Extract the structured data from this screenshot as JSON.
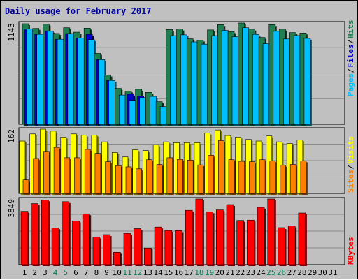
{
  "chart_data": {
    "type": "bar",
    "title": "Daily usage for February 2017",
    "categories": [
      "1",
      "2",
      "3",
      "4",
      "5",
      "6",
      "7",
      "8",
      "9",
      "10",
      "11",
      "12",
      "13",
      "14",
      "15",
      "16",
      "17",
      "18",
      "19",
      "20",
      "21",
      "22",
      "23",
      "24",
      "25",
      "26",
      "27",
      "28",
      "29",
      "30",
      "31"
    ],
    "weekend_days": [
      "4",
      "5",
      "11",
      "12",
      "18",
      "19",
      "25",
      "26"
    ],
    "panels": {
      "top": {
        "scale_label": "1143",
        "ylim": [
          0,
          1143
        ],
        "legend": [
          "Pages",
          "Files",
          "Hits"
        ],
        "series": [
          {
            "name": "Hits",
            "color": "#1f7f50",
            "values": [
              1135,
              1082,
              1130,
              1025,
              1090,
              1040,
              1085,
              800,
              555,
              405,
              375,
              395,
              360,
              255,
              1070,
              1075,
              965,
              950,
              1065,
              1125,
              1045,
              1143,
              1074,
              980,
              1125,
              1074,
              1035,
              1030,
              0,
              0,
              0
            ]
          },
          {
            "name": "Files",
            "color": "#0000d0",
            "values": [
              1075,
              1016,
              1050,
              960,
              1024,
              975,
              1016,
              730,
              495,
              0,
              340,
              320,
              0,
              0,
              0,
              0,
              0,
              0,
              0,
              0,
              0,
              0,
              0,
              0,
              0,
              0,
              0,
              0,
              0,
              0,
              0
            ]
          },
          {
            "name": "Pages",
            "color": "#00bfff",
            "values": [
              1075,
              1016,
              1050,
              960,
              1024,
              975,
              955,
              730,
              495,
              330,
              270,
              300,
              315,
              200,
              1000,
              1010,
              930,
              905,
              1000,
              1060,
              988,
              1090,
              1015,
              910,
              1050,
              963,
              1002,
              970,
              0,
              0,
              0
            ]
          }
        ]
      },
      "middle": {
        "scale_label": "162",
        "ylim": [
          0,
          162
        ],
        "legend": [
          "Sites",
          "Visits"
        ],
        "series": [
          {
            "name": "Visits",
            "color": "#ffff00",
            "values": [
              132,
              150,
              162,
              157,
              142,
              150,
              147,
              147,
              130,
              103,
              92,
              110,
              108,
              122,
              130,
              128,
              128,
              128,
              152,
              160,
              146,
              142,
              136,
              132,
              145,
              130,
              126,
              135,
              0,
              0,
              0
            ]
          },
          {
            "name": "Sites",
            "color": "#ff8000",
            "values": [
              34,
              88,
              106,
              116,
              90,
              90,
              111,
              101,
              80,
              70,
              67,
              62,
              85,
              73,
              90,
              86,
              84,
              72,
              96,
              133,
              85,
              81,
              80,
              85,
              82,
              71,
              73,
              82,
              0,
              0,
              0
            ]
          }
        ]
      },
      "bottom": {
        "scale_label": "3849",
        "ylim": [
          0,
          3849
        ],
        "legend": [
          "KBytes"
        ],
        "series": [
          {
            "name": "KBytes",
            "color": "#ff0000",
            "values": [
              3125,
              3580,
              3790,
              2158,
              3692,
              2561,
              2979,
              1614,
              1760,
              723,
              1840,
              2110,
              973,
              2204,
              2004,
              1992,
              3185,
              3849,
              3100,
              3210,
              3520,
              2590,
              2610,
              3360,
              3849,
              2170,
              2265,
              3030,
              0,
              0,
              0
            ]
          }
        ]
      }
    }
  }
}
